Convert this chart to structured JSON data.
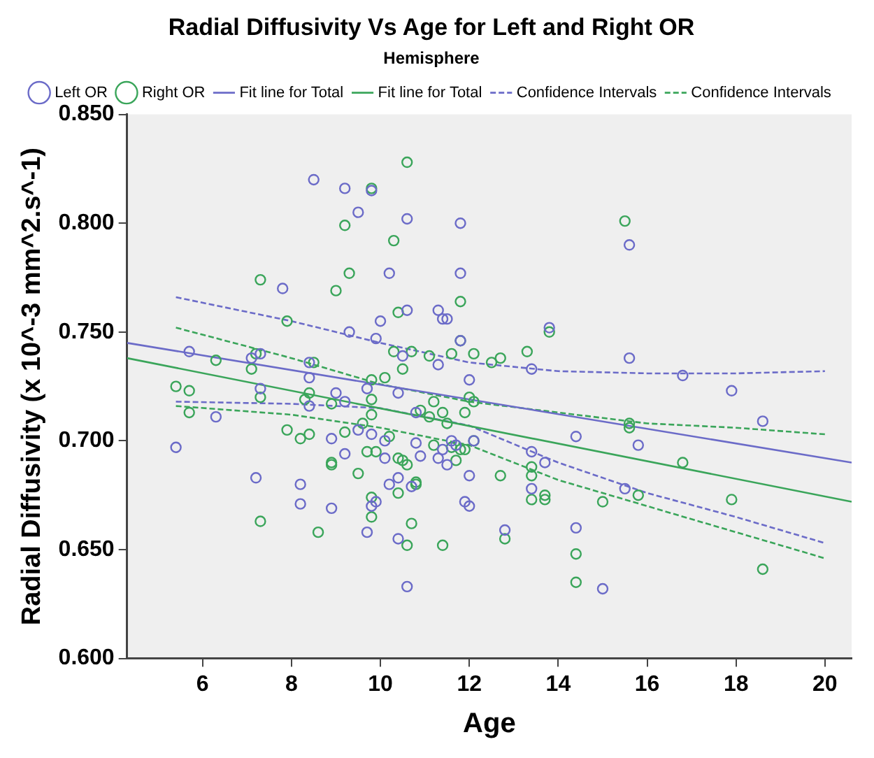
{
  "chart_data": {
    "type": "scatter",
    "title": "Radial Diffusivity Vs Age for Left and Right OR",
    "xlabel": "Age",
    "ylabel": "Radial Diffusivity (x 10^-3 mm^2.s^-1)",
    "legend_title": "Hemisphere",
    "legend": "top",
    "grid": false,
    "xlim": [
      4.3,
      20.6
    ],
    "xticks": [
      6,
      8,
      10,
      12,
      14,
      16,
      18,
      20
    ],
    "ylim": [
      0.6,
      0.85
    ],
    "yticks": [
      {
        "value": 0.6,
        "label": "0.600"
      },
      {
        "value": 0.65,
        "label": "0.650"
      },
      {
        "value": 0.7,
        "label": "0.700"
      },
      {
        "value": 0.75,
        "label": "0.750"
      },
      {
        "value": 0.8,
        "label": "0.800"
      },
      {
        "value": 0.85,
        "label": "0.850"
      }
    ],
    "series": [
      {
        "name": "Left OR",
        "marker": "circle",
        "color": "#6b6bc8",
        "x": [
          8.5,
          9.2,
          9.8,
          9.5,
          10.6,
          11.8,
          15.6,
          11.8,
          10.2,
          7.8,
          11.3,
          10.6,
          11.4,
          11.5,
          10.0,
          9.3,
          13.8,
          9.9,
          11.8,
          5.7,
          7.3,
          7.1,
          8.4,
          10.5,
          11.3,
          8.4,
          12.0,
          13.4,
          15.6,
          16.8,
          17.9,
          18.6,
          7.3,
          8.4,
          9.2,
          9.0,
          9.7,
          10.4,
          10.8,
          11.6,
          11.7,
          12.1,
          11.4,
          14.4,
          15.8,
          13.4,
          13.7,
          12.0,
          11.5,
          11.3,
          10.9,
          10.1,
          10.1,
          9.8,
          9.5,
          9.2,
          8.9,
          6.3,
          5.4,
          7.2,
          8.2,
          8.2,
          8.9,
          9.8,
          9.9,
          10.2,
          10.4,
          10.7,
          11.9,
          12.0,
          13.4,
          12.8,
          14.4,
          15.5,
          15.0,
          10.4,
          9.7,
          10.6,
          10.8
        ],
        "values": [
          0.82,
          0.816,
          0.815,
          0.805,
          0.802,
          0.8,
          0.79,
          0.777,
          0.777,
          0.77,
          0.76,
          0.76,
          0.756,
          0.756,
          0.755,
          0.75,
          0.752,
          0.747,
          0.746,
          0.741,
          0.74,
          0.738,
          0.736,
          0.739,
          0.735,
          0.729,
          0.728,
          0.733,
          0.738,
          0.73,
          0.723,
          0.709,
          0.724,
          0.716,
          0.718,
          0.722,
          0.724,
          0.722,
          0.713,
          0.7,
          0.698,
          0.7,
          0.696,
          0.702,
          0.698,
          0.695,
          0.69,
          0.684,
          0.689,
          0.692,
          0.693,
          0.692,
          0.7,
          0.703,
          0.705,
          0.694,
          0.701,
          0.711,
          0.697,
          0.683,
          0.68,
          0.671,
          0.669,
          0.67,
          0.672,
          0.68,
          0.683,
          0.679,
          0.672,
          0.67,
          0.678,
          0.659,
          0.66,
          0.678,
          0.632,
          0.655,
          0.658,
          0.633,
          0.699
        ]
      },
      {
        "name": "Right OR",
        "marker": "circle",
        "color": "#3aa55a",
        "x": [
          10.6,
          9.8,
          9.2,
          10.3,
          15.5,
          9.3,
          7.3,
          9.0,
          11.8,
          10.4,
          7.9,
          11.8,
          12.1,
          10.3,
          10.7,
          11.6,
          11.1,
          13.3,
          13.8,
          12.5,
          12.7,
          6.3,
          7.2,
          7.1,
          8.5,
          10.5,
          5.4,
          5.7,
          5.7,
          7.3,
          8.4,
          8.3,
          9.8,
          10.1,
          9.8,
          8.9,
          10.9,
          11.2,
          11.4,
          11.1,
          12.0,
          12.1,
          11.9,
          11.5,
          7.9,
          8.2,
          8.4,
          9.2,
          9.6,
          9.8,
          10.2,
          11.9,
          11.7,
          11.2,
          9.7,
          9.9,
          10.4,
          10.5,
          10.6,
          11.6,
          11.8,
          12.1,
          13.4,
          13.4,
          15.6,
          15.6,
          16.8,
          8.9,
          8.9,
          9.5,
          10.8,
          10.8,
          10.4,
          9.8,
          9.8,
          7.3,
          8.6,
          10.7,
          10.6,
          11.4,
          12.7,
          12.8,
          13.7,
          13.7,
          13.4,
          15.0,
          15.8,
          17.9,
          14.4,
          14.4,
          18.6
        ],
        "values": [
          0.828,
          0.816,
          0.799,
          0.792,
          0.801,
          0.777,
          0.774,
          0.769,
          0.764,
          0.759,
          0.755,
          0.746,
          0.74,
          0.741,
          0.741,
          0.74,
          0.739,
          0.741,
          0.75,
          0.736,
          0.738,
          0.737,
          0.74,
          0.733,
          0.736,
          0.733,
          0.725,
          0.723,
          0.713,
          0.72,
          0.722,
          0.719,
          0.728,
          0.729,
          0.719,
          0.717,
          0.714,
          0.718,
          0.713,
          0.711,
          0.72,
          0.718,
          0.713,
          0.708,
          0.705,
          0.701,
          0.703,
          0.704,
          0.708,
          0.712,
          0.702,
          0.696,
          0.691,
          0.698,
          0.695,
          0.695,
          0.692,
          0.691,
          0.689,
          0.697,
          0.696,
          0.7,
          0.688,
          0.684,
          0.708,
          0.706,
          0.69,
          0.69,
          0.689,
          0.685,
          0.681,
          0.68,
          0.676,
          0.674,
          0.665,
          0.663,
          0.658,
          0.662,
          0.652,
          0.652,
          0.684,
          0.655,
          0.675,
          0.673,
          0.673,
          0.672,
          0.675,
          0.673,
          0.648,
          0.635,
          0.641
        ]
      },
      {
        "name": "Fit line for Total",
        "type": "line",
        "line_style": "solid",
        "marker": "none",
        "color": "#6b6bc8",
        "x": [
          4.3,
          20.6
        ],
        "values": [
          0.745,
          0.69
        ]
      },
      {
        "name": "Fit line for Total",
        "type": "line",
        "line_style": "solid",
        "marker": "none",
        "color": "#3aa55a",
        "x": [
          4.3,
          20.6
        ],
        "values": [
          0.738,
          0.672
        ]
      },
      {
        "name": "Confidence Intervals",
        "type": "line",
        "line_style": "dashed",
        "marker": "none",
        "color": "#6b6bc8",
        "x": [
          5.4,
          8,
          10,
          12,
          14,
          16,
          18,
          20
        ],
        "values": [
          0.766,
          0.755,
          0.745,
          0.736,
          0.732,
          0.731,
          0.731,
          0.732
        ]
      },
      {
        "name": "Confidence Intervals",
        "type": "line",
        "line_style": "dashed",
        "marker": "none",
        "color": "#3aa55a",
        "x": [
          5.4,
          8,
          10,
          12,
          14,
          16,
          18,
          20
        ],
        "values": [
          0.752,
          0.738,
          0.726,
          0.718,
          0.713,
          0.708,
          0.706,
          0.703
        ]
      },
      {
        "type": "line",
        "line_style": "dashed",
        "marker": "none",
        "color": "#6b6bc8",
        "x": [
          5.4,
          8,
          10,
          12,
          14,
          16,
          18,
          20
        ],
        "values": [
          0.718,
          0.717,
          0.715,
          0.707,
          0.69,
          0.676,
          0.665,
          0.653
        ]
      },
      {
        "type": "line",
        "line_style": "dashed",
        "marker": "none",
        "color": "#3aa55a",
        "x": [
          5.4,
          8,
          10,
          12,
          14,
          16,
          18,
          20
        ],
        "values": [
          0.716,
          0.712,
          0.706,
          0.698,
          0.682,
          0.67,
          0.658,
          0.646
        ]
      }
    ]
  }
}
